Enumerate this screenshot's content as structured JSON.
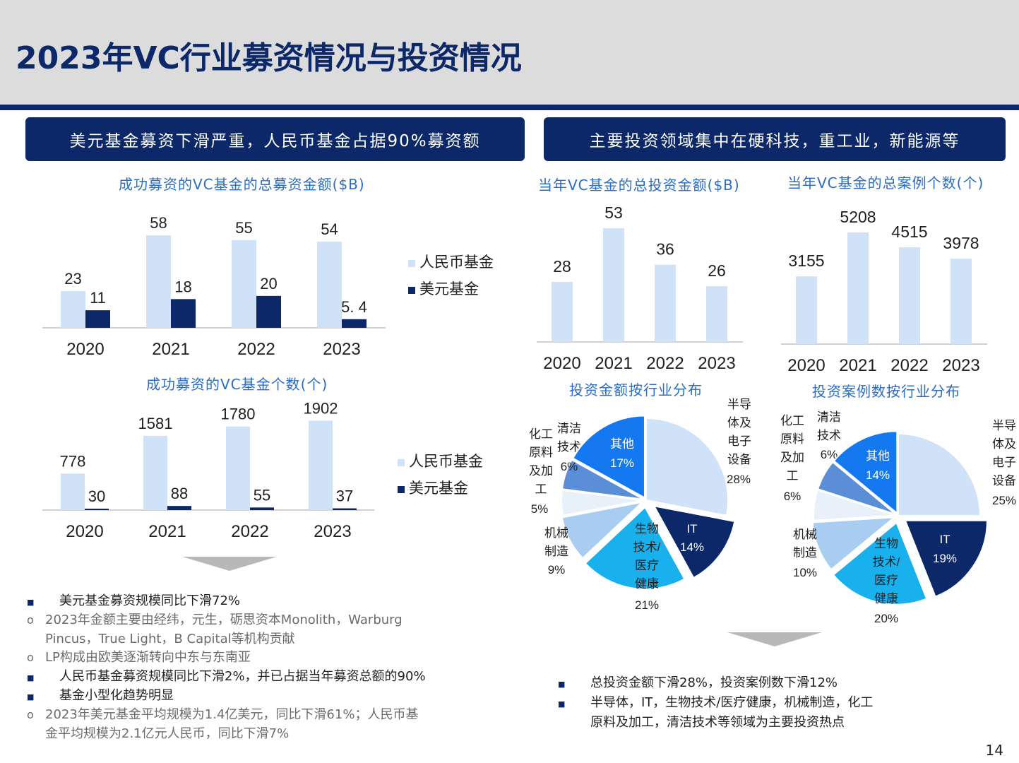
{
  "title": "2023年VC行业募资情况与投资情况",
  "banners": {
    "left": "美元基金募资下滑严重，人民币基金占据90%募资额",
    "right": "主要投资领域集中在硬科技，重工业，新能源等"
  },
  "page_number": "14",
  "colors": {
    "navy": "#0c2869",
    "light_blue": "#cfe2f7",
    "accent_blue": "#2b6cc4"
  },
  "chart_data": [
    {
      "id": "fund_amount",
      "type": "bar",
      "title": "成功募资的VC基金的总募资金额($B)",
      "categories": [
        "2020",
        "2021",
        "2022",
        "2023"
      ],
      "series": [
        {
          "name": "人民币基金",
          "values": [
            23,
            58,
            55,
            54
          ],
          "labels": [
            "23",
            "58",
            "55",
            "54"
          ]
        },
        {
          "name": "美元基金",
          "values": [
            11,
            18,
            20,
            5.4
          ],
          "labels": [
            "11",
            "18",
            "20",
            "5. 4"
          ]
        }
      ],
      "ylim": [
        0,
        62
      ]
    },
    {
      "id": "fund_count",
      "type": "bar",
      "title": "成功募资的VC基金个数(个)",
      "categories": [
        "2020",
        "2021",
        "2022",
        "2023"
      ],
      "series": [
        {
          "name": "人民币基金",
          "values": [
            778,
            1581,
            1780,
            1902
          ],
          "labels": [
            "778",
            "1581",
            "1780",
            "1902"
          ]
        },
        {
          "name": "美元基金",
          "values": [
            30,
            88,
            55,
            37
          ],
          "labels": [
            "30",
            "88",
            "55",
            "37"
          ]
        }
      ],
      "ylim": [
        0,
        2000
      ]
    },
    {
      "id": "invest_amount",
      "type": "bar",
      "title": "当年VC基金的总投资金额($B)",
      "categories": [
        "2020",
        "2021",
        "2022",
        "2023"
      ],
      "values": [
        28,
        53,
        36,
        26
      ],
      "labels": [
        "28",
        "53",
        "36",
        "26"
      ],
      "ylim": [
        0,
        56
      ]
    },
    {
      "id": "invest_cases",
      "type": "bar",
      "title": "当年VC基金的总案例个数(个)",
      "categories": [
        "2020",
        "2021",
        "2022",
        "2023"
      ],
      "values": [
        3155,
        5208,
        4515,
        3978
      ],
      "labels": [
        "3155",
        "5208",
        "4515",
        "3978"
      ],
      "ylim": [
        0,
        5600
      ]
    },
    {
      "id": "amount_by_industry",
      "type": "pie",
      "title": "投资金额按行业分布",
      "slices": [
        {
          "name": "半导体及电子设备",
          "value": 28,
          "label": "28%"
        },
        {
          "name": "IT",
          "value": 14,
          "label": "14%"
        },
        {
          "name": "生物技术/医疗健康",
          "value": 21,
          "label": "21%"
        },
        {
          "name": "机械制造",
          "value": 9,
          "label": "9%"
        },
        {
          "name": "化工原料及加工",
          "value": 5,
          "label": "5%"
        },
        {
          "name": "清洁技术",
          "value": 6,
          "label": "6%"
        },
        {
          "name": "其他",
          "value": 17,
          "label": "17%"
        }
      ]
    },
    {
      "id": "cases_by_industry",
      "type": "pie",
      "title": "投资案例数按行业分布",
      "slices": [
        {
          "name": "半导体及电子设备",
          "value": 25,
          "label": "25%"
        },
        {
          "name": "IT",
          "value": 19,
          "label": "19%"
        },
        {
          "name": "生物技术/医疗健康",
          "value": 20,
          "label": "20%"
        },
        {
          "name": "机械制造",
          "value": 10,
          "label": "10%"
        },
        {
          "name": "化工原料及加工",
          "value": 6,
          "label": "6%"
        },
        {
          "name": "清洁技术",
          "value": 6,
          "label": "6%"
        },
        {
          "name": "其他",
          "value": 14,
          "label": "14%"
        }
      ]
    }
  ],
  "bullets_left": [
    {
      "level": 1,
      "text": "美元基金募资规模同比下滑72%"
    },
    {
      "level": 2,
      "text": "2023年金额主要由经纬，元生，砺思资本Monolith，Warburg"
    },
    {
      "level": 2,
      "text": "Pincus，True Light，B Capital等机构贡献",
      "continuation": true
    },
    {
      "level": 2,
      "text": "LP构成由欧美逐渐转向中东与东南亚"
    },
    {
      "level": 1,
      "text": "人民币基金募资规模同比下滑2%，并已占据当年募资总额的90%"
    },
    {
      "level": 1,
      "text": "基金小型化趋势明显"
    },
    {
      "level": 2,
      "text": "2023年美元基金平均规模为1.4亿美元，同比下滑61%；人民币基"
    },
    {
      "level": 2,
      "text": "金平均规模为2.1亿元人民币，同比下滑7%",
      "continuation": true
    }
  ],
  "bullets_right": [
    {
      "level": 1,
      "text": "总投资金额下滑28%，投资案例数下滑12%"
    },
    {
      "level": 1,
      "text": "半导体，IT，生物技术/医疗健康，机械制造，化工"
    },
    {
      "level": 1,
      "text": "原料及加工，清洁技术等领域为主要投资热点",
      "continuation": true
    }
  ],
  "markers": {
    "level1": "■",
    "level2": "o"
  }
}
